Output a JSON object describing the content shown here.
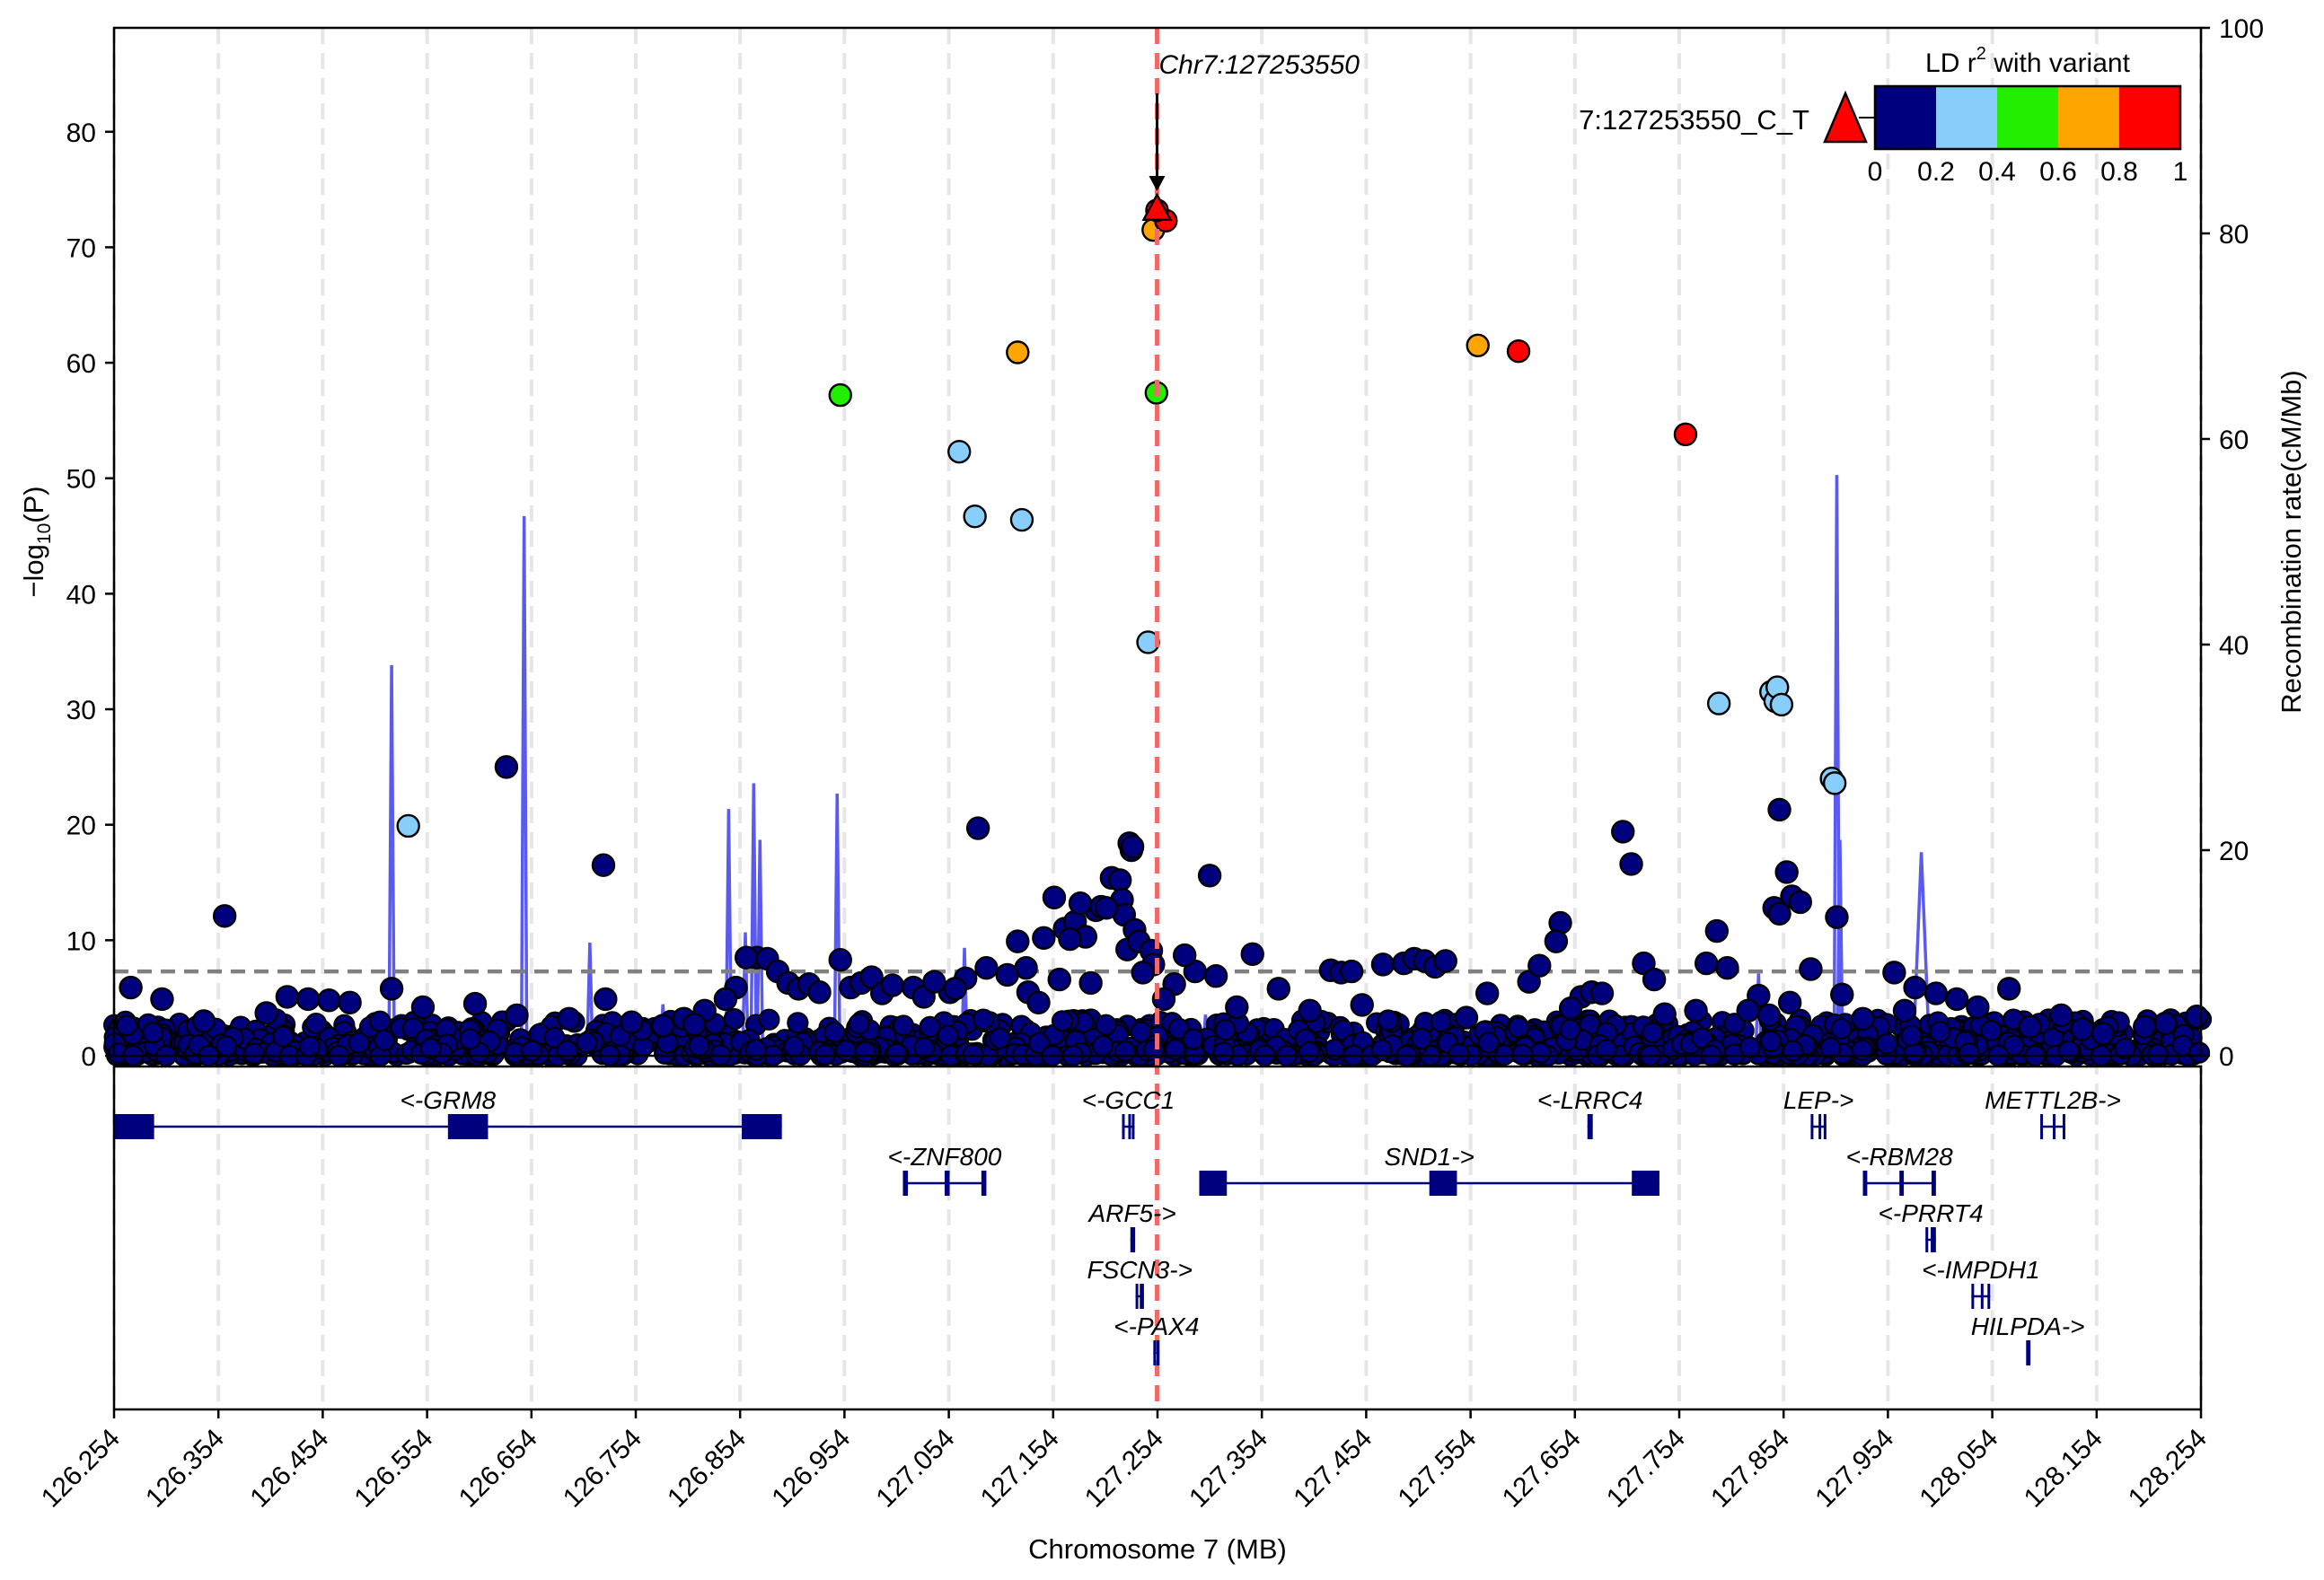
{
  "chart_data": {
    "type": "scatter",
    "title": "",
    "xlabel": "Chromosome 7 (MB)",
    "ylabel": "-log10(P)",
    "ylabel_parts": {
      "prefix": "−log",
      "sub": "10",
      "suffix": "(P)"
    },
    "y2label": "Recombination rate(cM/Mb)",
    "xlim": [
      126.254,
      128.254
    ],
    "ylim": [
      0,
      89
    ],
    "y2lim": [
      0,
      100
    ],
    "x_ticks": [
      "126.254",
      "126.354",
      "126.454",
      "126.554",
      "126.654",
      "126.754",
      "126.854",
      "126.954",
      "127.054",
      "127.154",
      "127.254",
      "127.354",
      "127.454",
      "127.554",
      "127.654",
      "127.754",
      "127.854",
      "127.954",
      "128.054",
      "128.154",
      "128.254"
    ],
    "y_ticks": [
      0,
      10,
      20,
      30,
      40,
      50,
      60,
      70,
      80
    ],
    "y2_ticks": [
      0,
      20,
      40,
      60,
      80,
      100
    ],
    "significance_line": 7.3,
    "lead_variant": {
      "x": 127.25355,
      "y": 73.0,
      "label": "7:127253550_C_T",
      "annotation": "Chr7:127253550"
    },
    "legend": {
      "title_prefix": "LD r",
      "title_sup": "2",
      "title_suffix": " with variant",
      "colors": [
        "#00007f",
        "#87cefa",
        "#22ee00",
        "#ffa500",
        "#ff0000"
      ],
      "tick_labels": [
        "0",
        "0.2",
        "0.4",
        "0.6",
        "0.8",
        "1"
      ],
      "placement": "top-right"
    },
    "series": [
      {
        "name": "LD 0.8-1",
        "color": "#ff0000",
        "points": [
          [
            127.262,
            72.3
          ],
          [
            127.6,
            61
          ],
          [
            127.76,
            53.8
          ]
        ]
      },
      {
        "name": "LD 0.6-0.8",
        "color": "#ffa500",
        "points": [
          [
            127.25,
            71.5
          ],
          [
            127.12,
            60.9
          ],
          [
            127.561,
            61.5
          ]
        ]
      },
      {
        "name": "LD 0.4-0.6",
        "color": "#22ee00",
        "points": [
          [
            126.95,
            57.2
          ],
          [
            127.253,
            57.4
          ]
        ]
      },
      {
        "name": "LD 0.2-0.4",
        "color": "#87cefa",
        "points": [
          [
            127.064,
            52.3
          ],
          [
            127.079,
            46.7
          ],
          [
            127.124,
            46.4
          ],
          [
            127.245,
            35.8
          ],
          [
            126.536,
            19.9
          ],
          [
            127.792,
            30.5
          ],
          [
            127.842,
            31.5
          ],
          [
            127.846,
            30.7
          ],
          [
            127.848,
            31.9
          ],
          [
            127.852,
            30.4
          ],
          [
            127.9,
            24
          ],
          [
            127.903,
            23.6
          ]
        ]
      },
      {
        "name": "LD 0-0.2",
        "color": "#00007f",
        "points": [
          [
            126.36,
            12.1
          ],
          [
            126.63,
            25
          ],
          [
            126.723,
            16.5
          ],
          [
            127.082,
            19.7
          ],
          [
            127.304,
            15.6
          ],
          [
            127.7,
            19.4
          ],
          [
            127.708,
            16.6
          ],
          [
            127.85,
            21.3
          ],
          [
            127.857,
            15.9
          ],
          [
            127.862,
            13.8
          ],
          [
            127.87,
            13.3
          ],
          [
            127.905,
            12
          ],
          [
            127.845,
            12.8
          ],
          [
            127.85,
            12.3
          ],
          [
            127.79,
            10.8
          ],
          [
            127.64,
            11.5
          ],
          [
            127.636,
            9.9
          ],
          [
            127.345,
            8.8
          ],
          [
            127.227,
            18.4
          ],
          [
            127.229,
            17.8
          ],
          [
            127.23,
            18.1
          ],
          [
            127.21,
            15.4
          ],
          [
            127.218,
            15.2
          ],
          [
            127.22,
            13.5
          ],
          [
            127.222,
            12.2
          ],
          [
            127.225,
            9.2
          ],
          [
            127.232,
            10.9
          ],
          [
            127.236,
            9.9
          ],
          [
            127.248,
            9.1
          ],
          [
            127.25,
            7.9
          ],
          [
            127.24,
            7.2
          ],
          [
            127.155,
            13.7
          ],
          [
            127.165,
            11
          ],
          [
            127.175,
            11.6
          ],
          [
            127.185,
            10.3
          ],
          [
            127.195,
            12.6
          ],
          [
            127.2,
            12.9
          ],
          [
            127.205,
            12.8
          ],
          [
            127.18,
            13.2
          ],
          [
            127.17,
            10.1
          ],
          [
            127.145,
            10.2
          ],
          [
            127.12,
            9.9
          ],
          [
            127.128,
            7.6
          ],
          [
            127.11,
            7
          ],
          [
            127.09,
            7.6
          ],
          [
            127.07,
            6.7
          ],
          [
            127.055,
            5.5
          ],
          [
            126.95,
            8.3
          ],
          [
            126.87,
            8.5
          ],
          [
            126.86,
            8.5
          ],
          [
            126.88,
            8.4
          ],
          [
            126.89,
            7.3
          ],
          [
            126.9,
            6.3
          ],
          [
            126.91,
            5.8
          ],
          [
            126.92,
            6.2
          ],
          [
            126.93,
            5.5
          ],
          [
            126.96,
            5.9
          ],
          [
            126.97,
            6.3
          ],
          [
            126.98,
            6.8
          ],
          [
            126.99,
            5.4
          ],
          [
            127,
            6.1
          ],
          [
            127.02,
            5.9
          ],
          [
            127.03,
            5.1
          ],
          [
            127.04,
            6.4
          ],
          [
            127.06,
            5.8
          ],
          [
            126.85,
            5.9
          ],
          [
            126.84,
            4.9
          ],
          [
            126.82,
            3.9
          ],
          [
            126.8,
            3.2
          ],
          [
            127.31,
            6.9
          ],
          [
            127.27,
            6.2
          ],
          [
            127.29,
            7.3
          ],
          [
            127.28,
            8.7
          ],
          [
            127.37,
            5.8
          ],
          [
            127.42,
            7.4
          ],
          [
            127.43,
            7.2
          ],
          [
            127.44,
            7.3
          ],
          [
            127.47,
            7.9
          ],
          [
            127.49,
            8
          ],
          [
            127.5,
            8.4
          ],
          [
            127.51,
            8.2
          ],
          [
            127.52,
            7.7
          ],
          [
            127.53,
            8.2
          ],
          [
            127.57,
            5.4
          ],
          [
            127.61,
            6.4
          ],
          [
            127.62,
            7.8
          ],
          [
            127.66,
            5.1
          ],
          [
            127.67,
            5.5
          ],
          [
            127.72,
            8
          ],
          [
            127.73,
            6.6
          ],
          [
            127.78,
            8
          ],
          [
            127.8,
            7.6
          ],
          [
            127.83,
            5.2
          ],
          [
            127.86,
            4.6
          ],
          [
            127.88,
            7.5
          ],
          [
            127.91,
            5.3
          ],
          [
            127.96,
            7.2
          ],
          [
            127.98,
            5.9
          ],
          [
            128,
            5.4
          ],
          [
            128.02,
            4.9
          ],
          [
            128.04,
            4.2
          ],
          [
            128.07,
            5.8
          ],
          [
            128.12,
            3.5
          ],
          [
            128.14,
            2.3
          ],
          [
            128.2,
            2.5
          ],
          [
            128.25,
            3.4
          ],
          [
            126.27,
            5.9
          ],
          [
            126.3,
            4.9
          ],
          [
            126.34,
            3
          ],
          [
            126.4,
            3.7
          ],
          [
            126.42,
            5.1
          ],
          [
            126.44,
            4.9
          ],
          [
            126.46,
            4.8
          ],
          [
            126.48,
            4.6
          ],
          [
            126.52,
            5.8
          ],
          [
            126.55,
            4.2
          ],
          [
            126.6,
            4.5
          ],
          [
            126.64,
            3.5
          ],
          [
            126.69,
            3.2
          ],
          [
            126.725,
            4.9
          ],
          [
            126.75,
            2.9
          ],
          [
            126.78,
            2.6
          ],
          [
            126.81,
            2.7
          ],
          [
            127.13,
            5.5
          ],
          [
            127.14,
            4.6
          ],
          [
            127.16,
            6.6
          ],
          [
            127.19,
            6.3
          ],
          [
            127.26,
            4.9
          ],
          [
            127.33,
            4.2
          ],
          [
            127.4,
            3.9
          ],
          [
            127.45,
            4.4
          ],
          [
            127.55,
            3.3
          ],
          [
            127.65,
            4.1
          ],
          [
            127.68,
            5.4
          ],
          [
            127.74,
            3.6
          ],
          [
            127.77,
            3.9
          ],
          [
            127.82,
            3.9
          ],
          [
            127.84,
            3.5
          ],
          [
            127.93,
            3.2
          ],
          [
            127.97,
            3.9
          ],
          [
            128.09,
            2.5
          ],
          [
            128.16,
            1.9
          ],
          [
            128.22,
            2.8
          ]
        ]
      }
    ],
    "recombination": {
      "color": "#5a5aee",
      "peaks": [
        [
          126.52,
          38
        ],
        [
          126.647,
          52.5
        ],
        [
          126.71,
          11
        ],
        [
          126.78,
          5
        ],
        [
          126.843,
          24
        ],
        [
          126.859,
          12
        ],
        [
          126.867,
          26.5
        ],
        [
          126.873,
          21
        ],
        [
          126.947,
          25.5
        ],
        [
          127.069,
          10.5
        ],
        [
          127.3,
          4
        ],
        [
          127.65,
          3.5
        ],
        [
          127.83,
          8
        ],
        [
          127.905,
          56.5
        ],
        [
          127.908,
          21
        ],
        [
          127.986,
          19.8
        ],
        [
          128.1,
          2
        ]
      ]
    },
    "genes": [
      {
        "name": "<-GRM8",
        "start": 126.254,
        "end": 126.894,
        "row": 0
      },
      {
        "name": "<-GCC1",
        "start": 127.22,
        "end": 127.232,
        "row": 0
      },
      {
        "name": "<-LRRC4",
        "start": 127.666,
        "end": 127.671,
        "row": 0
      },
      {
        "name": "LEP->",
        "start": 127.88,
        "end": 127.895,
        "row": 0
      },
      {
        "name": "METTL2B->",
        "start": 128.1,
        "end": 128.124,
        "row": 0
      },
      {
        "name": "<-ZNF800",
        "start": 127.01,
        "end": 127.09,
        "row": 1
      },
      {
        "name": "SND1->",
        "start": 127.294,
        "end": 127.735,
        "row": 1
      },
      {
        "name": "<-RBM28",
        "start": 127.93,
        "end": 128.0,
        "row": 1
      },
      {
        "name": "ARF5->",
        "start": 127.228,
        "end": 127.232,
        "row": 2
      },
      {
        "name": "<-PRRT4",
        "start": 127.99,
        "end": 128.0,
        "row": 2
      },
      {
        "name": "FSCN3->",
        "start": 127.233,
        "end": 127.241,
        "row": 3
      },
      {
        "name": "<-IMPDH1",
        "start": 128.034,
        "end": 128.052,
        "row": 3
      },
      {
        "name": "<-PAX4",
        "start": 127.25,
        "end": 127.256,
        "row": 4
      },
      {
        "name": "HILPDA->",
        "start": 128.087,
        "end": 128.089,
        "row": 4
      }
    ]
  }
}
